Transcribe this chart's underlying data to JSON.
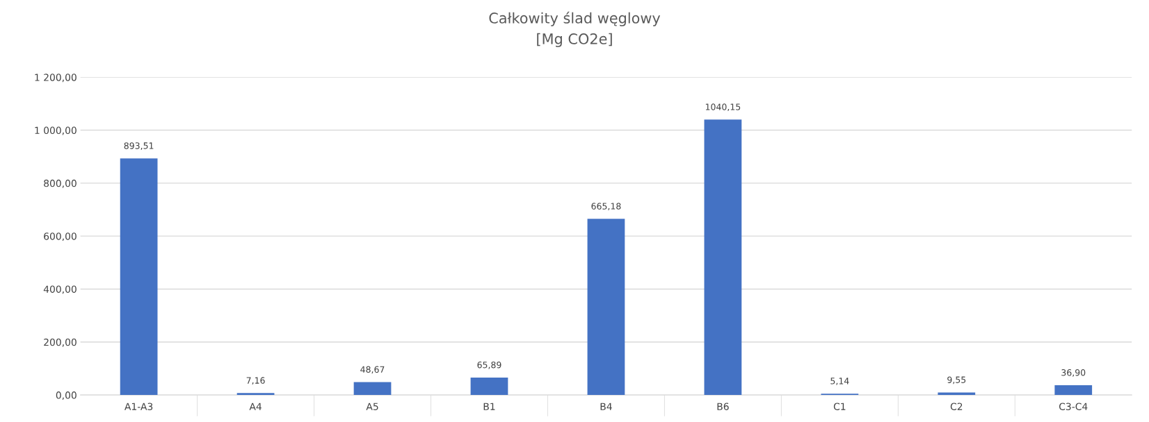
{
  "chart_data": {
    "type": "bar",
    "title": "Całkowity ślad węglowy",
    "subtitle": "[Mg CO2e]",
    "categories": [
      "A1-A3",
      "A4",
      "A5",
      "B1",
      "B4",
      "B6",
      "C1",
      "C2",
      "C3-C4"
    ],
    "values": [
      893.51,
      7.16,
      48.67,
      65.89,
      665.18,
      1040.15,
      5.14,
      9.55,
      36.9
    ],
    "value_labels": [
      "893,51",
      "7,16",
      "48,67",
      "65,89",
      "665,18",
      "1040,15",
      "5,14",
      "9,55",
      "36,90"
    ],
    "color": "#4472c4",
    "ylim": [
      0,
      1200
    ],
    "yticks": [
      {
        "value": 0,
        "label": "0,00"
      },
      {
        "value": 200,
        "label": "200,00"
      },
      {
        "value": 400,
        "label": "400,00"
      },
      {
        "value": 600,
        "label": "600,00"
      },
      {
        "value": 800,
        "label": "800,00"
      },
      {
        "value": 1000,
        "label": "1 000,00"
      },
      {
        "value": 1200,
        "label": "1 200,00"
      }
    ],
    "grid": "y"
  }
}
